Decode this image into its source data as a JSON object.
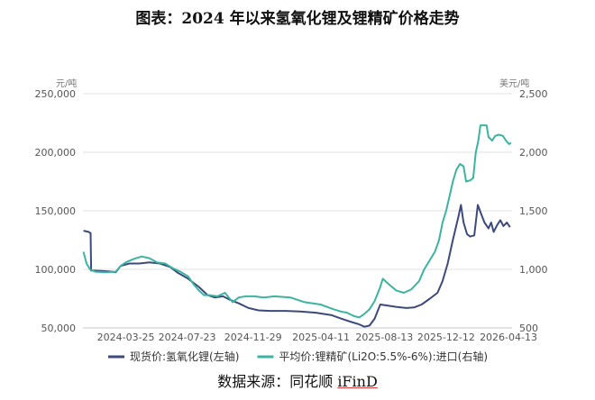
{
  "title": "图表：2024 年以来氢氧化锂及锂精矿价格走势",
  "source_prefix": "数据来源：同花顺",
  "source_brand": "iFinD",
  "chart_data": {
    "type": "line",
    "y_left_unit": "元/吨",
    "y_right_unit": "美元/吨",
    "y_left_range": [
      50000,
      250000
    ],
    "y_right_range": [
      500,
      2500
    ],
    "y_left_ticks": [
      "50,000",
      "100,000",
      "150,000",
      "200,000",
      "250,000"
    ],
    "y_left_tick_values": [
      50000,
      100000,
      150000,
      200000,
      250000
    ],
    "y_right_ticks": [
      "500",
      "1,000",
      "1,500",
      "2,000",
      "2,500"
    ],
    "y_right_tick_values": [
      500,
      1000,
      1500,
      2000,
      2500
    ],
    "x_range": [
      "2024-01-01",
      "2026-04-20"
    ],
    "x_ticks": [
      "2024-03-25",
      "2024-07-23",
      "2024-11-29",
      "2025-04-11",
      "2025-08-13",
      "2025-12-12",
      "2026-04-13"
    ],
    "grid": "horizontal",
    "legend_position": "bottom",
    "series": [
      {
        "name": "现货价:氢氧化锂(左轴)",
        "axis": "left",
        "color": "#3c4a7c",
        "points": [
          [
            "2024-01-02",
            133000
          ],
          [
            "2024-01-12",
            132000
          ],
          [
            "2024-01-16",
            131000
          ],
          [
            "2024-01-17",
            99000
          ],
          [
            "2024-02-10",
            98500
          ],
          [
            "2024-02-28",
            98000
          ],
          [
            "2024-03-05",
            97500
          ],
          [
            "2024-03-15",
            103000
          ],
          [
            "2024-04-01",
            105000
          ],
          [
            "2024-04-20",
            105000
          ],
          [
            "2024-05-10",
            106000
          ],
          [
            "2024-05-31",
            105000
          ],
          [
            "2024-06-20",
            102000
          ],
          [
            "2024-07-05",
            97000
          ],
          [
            "2024-07-25",
            92000
          ],
          [
            "2024-08-15",
            85000
          ],
          [
            "2024-09-01",
            78000
          ],
          [
            "2024-09-15",
            76000
          ],
          [
            "2024-10-01",
            77000
          ],
          [
            "2024-10-15",
            74000
          ],
          [
            "2024-11-01",
            71000
          ],
          [
            "2024-11-20",
            67000
          ],
          [
            "2024-12-10",
            65000
          ],
          [
            "2025-01-01",
            64500
          ],
          [
            "2025-02-01",
            64500
          ],
          [
            "2025-03-01",
            64000
          ],
          [
            "2025-04-01",
            63000
          ],
          [
            "2025-05-01",
            61000
          ],
          [
            "2025-05-20",
            58000
          ],
          [
            "2025-06-10",
            55000
          ],
          [
            "2025-06-25",
            53000
          ],
          [
            "2025-07-05",
            51000
          ],
          [
            "2025-07-15",
            52000
          ],
          [
            "2025-07-25",
            58000
          ],
          [
            "2025-08-05",
            70000
          ],
          [
            "2025-08-20",
            69000
          ],
          [
            "2025-09-05",
            68000
          ],
          [
            "2025-09-25",
            67000
          ],
          [
            "2025-10-10",
            67500
          ],
          [
            "2025-10-25",
            70000
          ],
          [
            "2025-11-10",
            75000
          ],
          [
            "2025-11-25",
            80000
          ],
          [
            "2025-12-05",
            90000
          ],
          [
            "2025-12-15",
            105000
          ],
          [
            "2025-12-25",
            125000
          ],
          [
            "2026-01-05",
            145000
          ],
          [
            "2026-01-10",
            155000
          ],
          [
            "2026-01-15",
            140000
          ],
          [
            "2026-01-22",
            130000
          ],
          [
            "2026-01-28",
            128000
          ],
          [
            "2026-02-05",
            129000
          ],
          [
            "2026-02-12",
            155000
          ],
          [
            "2026-02-18",
            148000
          ],
          [
            "2026-02-25",
            140000
          ],
          [
            "2026-03-05",
            135000
          ],
          [
            "2026-03-10",
            140000
          ],
          [
            "2026-03-15",
            132000
          ],
          [
            "2026-03-22",
            138000
          ],
          [
            "2026-03-28",
            142000
          ],
          [
            "2026-04-03",
            137000
          ],
          [
            "2026-04-10",
            140000
          ],
          [
            "2026-04-16",
            136000
          ]
        ]
      },
      {
        "name": "平均价:锂精矿(Li2O:5.5%-6%):进口(右轴)",
        "axis": "right",
        "color": "#3cb4a0",
        "points": [
          [
            "2024-01-02",
            1150
          ],
          [
            "2024-01-08",
            1050
          ],
          [
            "2024-01-15",
            1000
          ],
          [
            "2024-01-25",
            980
          ],
          [
            "2024-02-15",
            975
          ],
          [
            "2024-03-05",
            980
          ],
          [
            "2024-03-15",
            1030
          ],
          [
            "2024-03-25",
            1060
          ],
          [
            "2024-04-10",
            1090
          ],
          [
            "2024-04-25",
            1110
          ],
          [
            "2024-05-10",
            1095
          ],
          [
            "2024-05-25",
            1060
          ],
          [
            "2024-06-10",
            1050
          ],
          [
            "2024-06-25",
            1010
          ],
          [
            "2024-07-10",
            980
          ],
          [
            "2024-07-25",
            940
          ],
          [
            "2024-08-05",
            870
          ],
          [
            "2024-08-15",
            820
          ],
          [
            "2024-08-25",
            780
          ],
          [
            "2024-09-05",
            780
          ],
          [
            "2024-09-20",
            770
          ],
          [
            "2024-10-05",
            800
          ],
          [
            "2024-10-20",
            720
          ],
          [
            "2024-11-01",
            760
          ],
          [
            "2024-11-15",
            770
          ],
          [
            "2024-12-01",
            770
          ],
          [
            "2024-12-20",
            760
          ],
          [
            "2025-01-10",
            770
          ],
          [
            "2025-02-10",
            760
          ],
          [
            "2025-03-10",
            720
          ],
          [
            "2025-04-10",
            700
          ],
          [
            "2025-05-05",
            660
          ],
          [
            "2025-05-20",
            640
          ],
          [
            "2025-06-01",
            630
          ],
          [
            "2025-06-15",
            600
          ],
          [
            "2025-06-25",
            590
          ],
          [
            "2025-07-05",
            620
          ],
          [
            "2025-07-15",
            660
          ],
          [
            "2025-07-25",
            730
          ],
          [
            "2025-08-05",
            850
          ],
          [
            "2025-08-10",
            920
          ],
          [
            "2025-08-20",
            880
          ],
          [
            "2025-09-05",
            820
          ],
          [
            "2025-09-20",
            800
          ],
          [
            "2025-10-05",
            830
          ],
          [
            "2025-10-20",
            900
          ],
          [
            "2025-10-30",
            1000
          ],
          [
            "2025-11-10",
            1080
          ],
          [
            "2025-11-20",
            1150
          ],
          [
            "2025-11-28",
            1250
          ],
          [
            "2025-12-05",
            1400
          ],
          [
            "2025-12-12",
            1500
          ],
          [
            "2025-12-20",
            1650
          ],
          [
            "2025-12-25",
            1750
          ],
          [
            "2026-01-01",
            1850
          ],
          [
            "2026-01-08",
            1900
          ],
          [
            "2026-01-15",
            1880
          ],
          [
            "2026-01-20",
            1750
          ],
          [
            "2026-01-28",
            1760
          ],
          [
            "2026-02-03",
            1780
          ],
          [
            "2026-02-08",
            2000
          ],
          [
            "2026-02-13",
            2100
          ],
          [
            "2026-02-17",
            2230
          ],
          [
            "2026-03-01",
            2230
          ],
          [
            "2026-03-05",
            2130
          ],
          [
            "2026-03-12",
            2100
          ],
          [
            "2026-03-18",
            2140
          ],
          [
            "2026-03-25",
            2150
          ],
          [
            "2026-04-02",
            2140
          ],
          [
            "2026-04-08",
            2100
          ],
          [
            "2026-04-14",
            2070
          ],
          [
            "2026-04-18",
            2080
          ]
        ]
      }
    ]
  }
}
